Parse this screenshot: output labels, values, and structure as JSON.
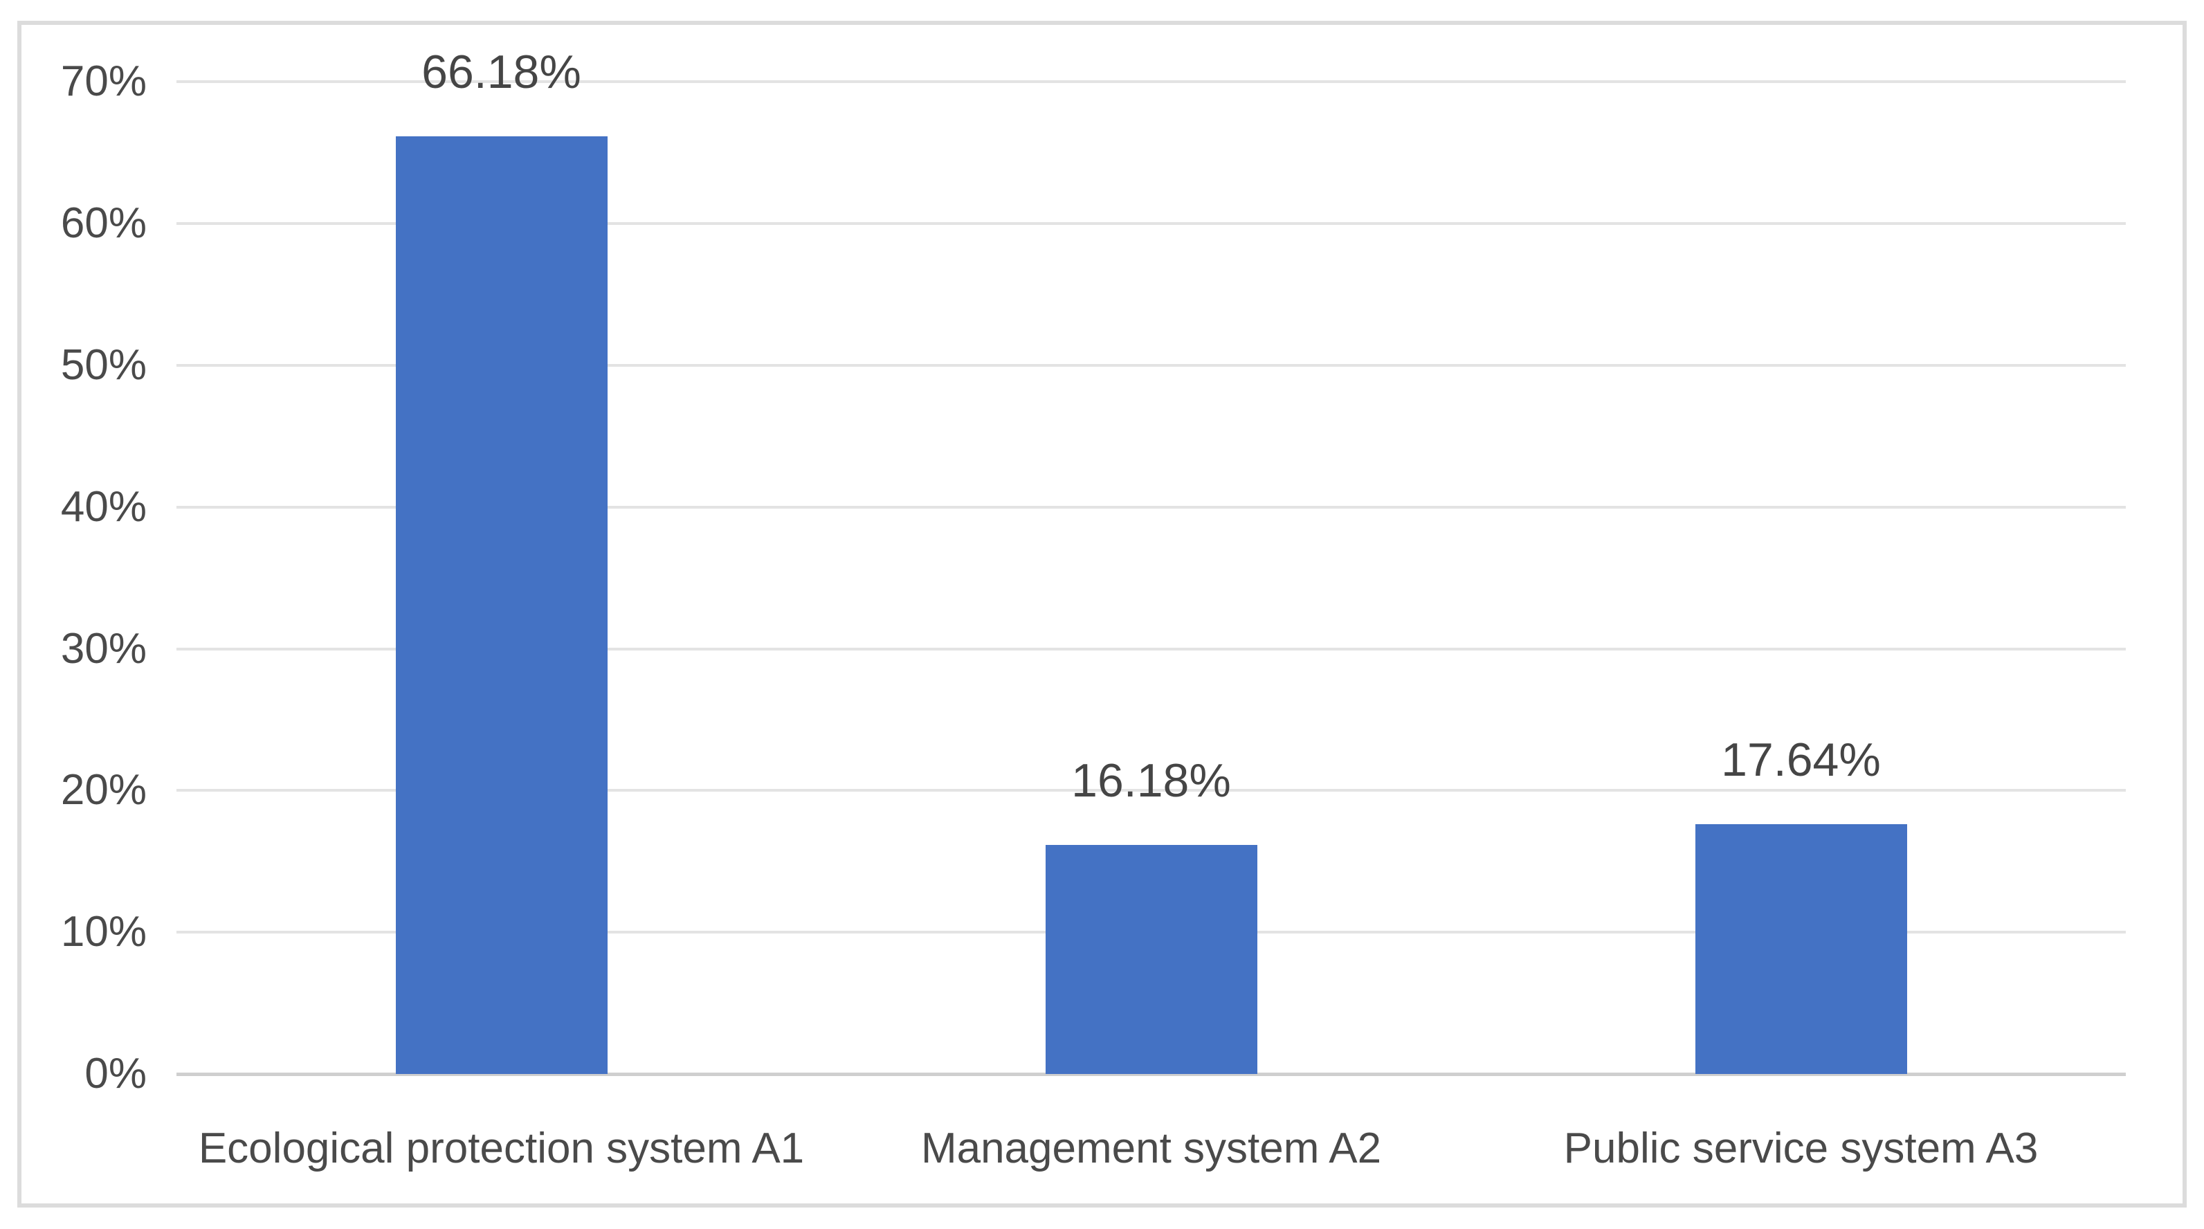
{
  "chart_data": {
    "type": "bar",
    "title": "",
    "xlabel": "",
    "ylabel": "",
    "categories": [
      "Ecological protection system A1",
      "Management system A2",
      "Public service system A3"
    ],
    "values": [
      66.18,
      16.18,
      17.64
    ],
    "data_labels": [
      "66.18%",
      "16.18%",
      "17.64%"
    ],
    "y_ticks": [
      "0%",
      "10%",
      "20%",
      "30%",
      "40%",
      "50%",
      "60%",
      "70%"
    ],
    "y_tick_values": [
      0,
      10,
      20,
      30,
      40,
      50,
      60,
      70
    ],
    "ylim": [
      0,
      70
    ],
    "grid": "horizontal",
    "legend": "none",
    "bar_color": "#4472c4"
  },
  "colors": {
    "bar": "#4472c4",
    "gridline": "#e3e3e3",
    "axis_line": "#cfcfcf",
    "frame_border": "#dcdcdc",
    "text": "#4a4a4a",
    "background": "#ffffff"
  }
}
